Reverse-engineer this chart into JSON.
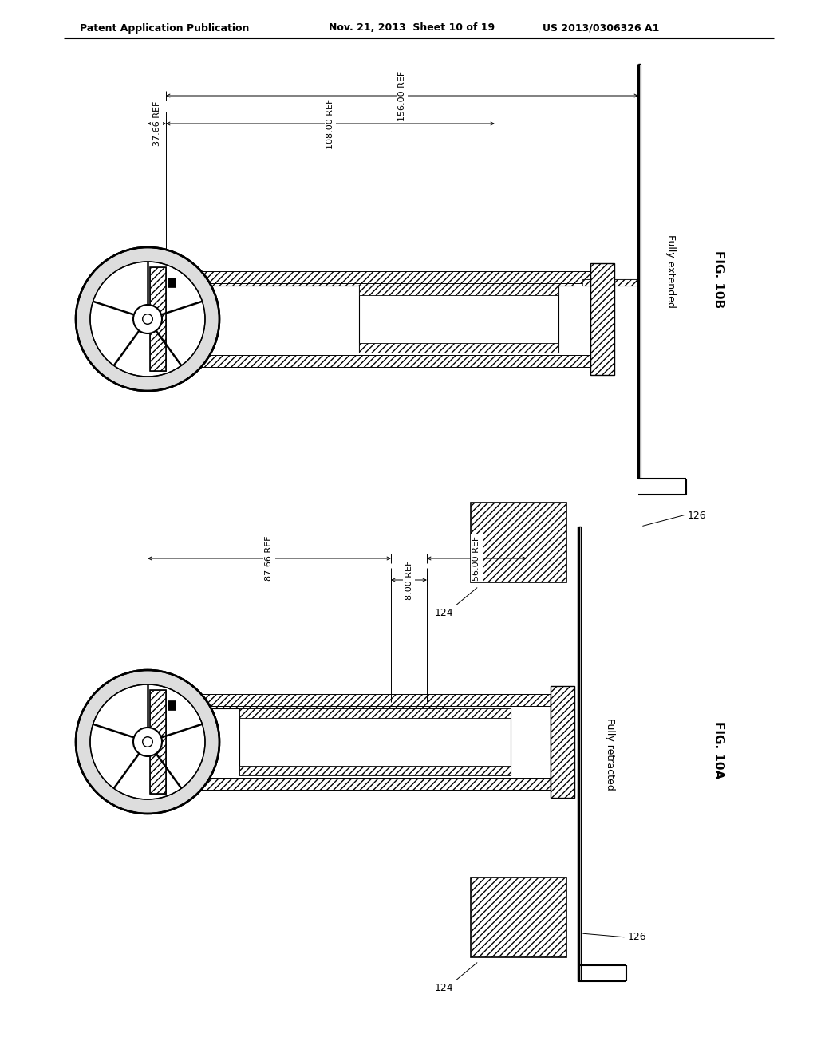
{
  "bg_color": "#ffffff",
  "line_color": "#000000",
  "header_left": "Patent Application Publication",
  "header_mid": "Nov. 21, 2013  Sheet 10 of 19",
  "header_right": "US 2013/0306326 A1",
  "fig10b_label": "FIG. 10B",
  "fig10a_label": "FIG. 10A",
  "fig10b_subtitle": "Fully extended",
  "fig10a_subtitle": "Fully retracted",
  "dim_10b_1": "37.66 REF",
  "dim_10b_2": "108.00 REF",
  "dim_10b_3": "156.00 REF",
  "dim_10a_1": "87.66 REF",
  "dim_10a_2": "8.00 REF",
  "dim_10a_3": "56.00 REF",
  "label_124": "124",
  "label_126": "126",
  "wheel_outer_r": 90,
  "wheel_inner_r": 72,
  "wheel_hub_r": 18,
  "n_spokes": 5
}
